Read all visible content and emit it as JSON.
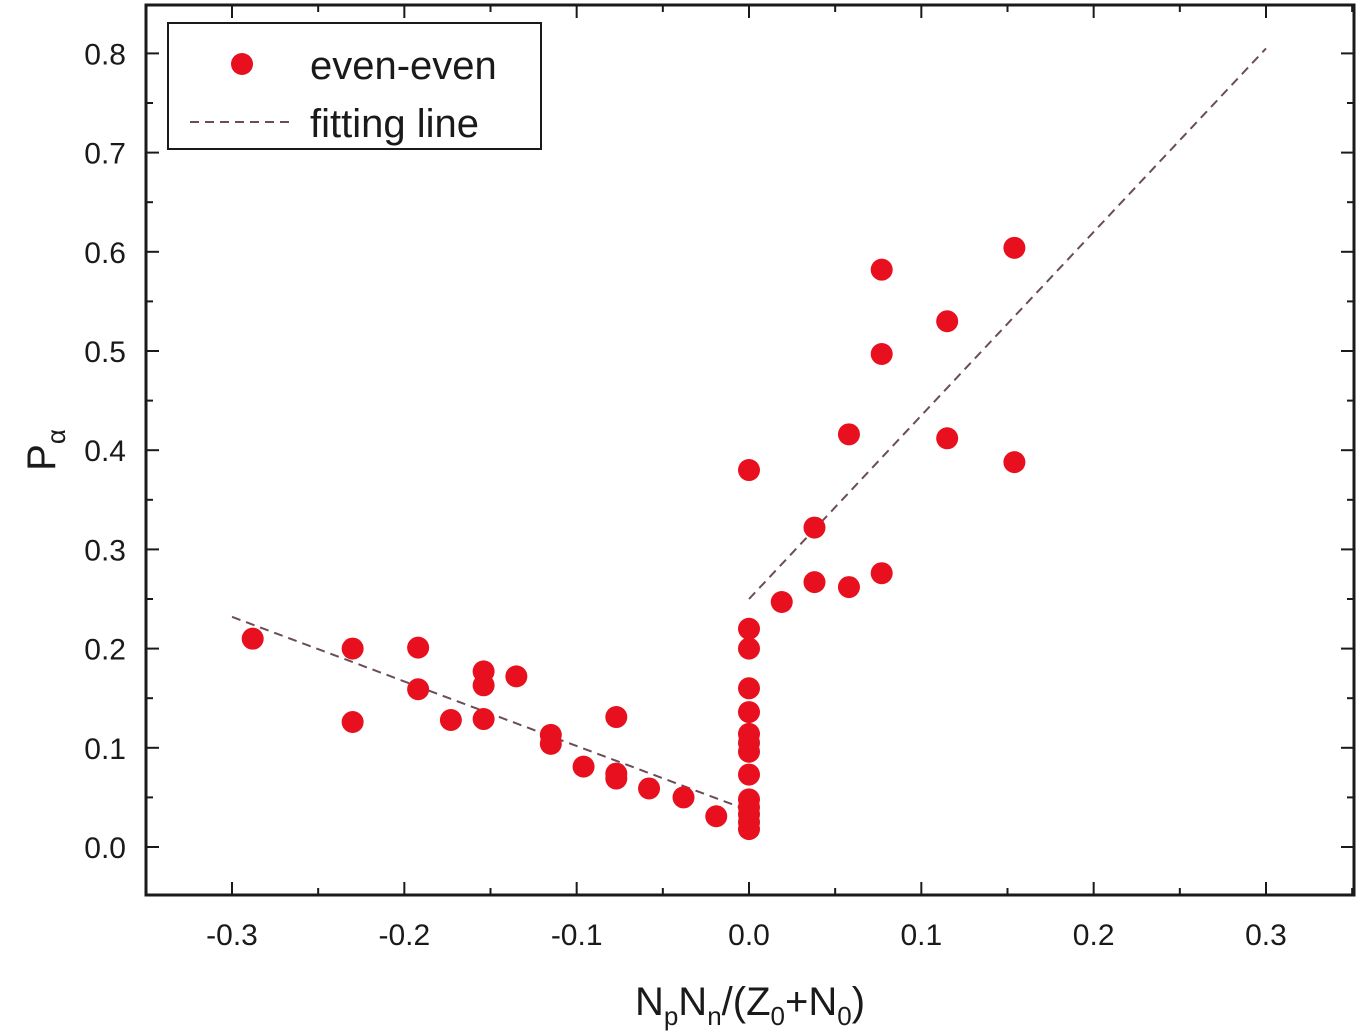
{
  "chart_data": {
    "type": "scatter",
    "xlabel": {
      "parts": [
        {
          "t": "N"
        },
        {
          "t": "p",
          "sub": true
        },
        {
          "t": "N"
        },
        {
          "t": "n",
          "sub": true
        },
        {
          "t": "/(Z"
        },
        {
          "t": "0",
          "sub": true
        },
        {
          "t": "+N"
        },
        {
          "t": "0",
          "sub": true
        },
        {
          "t": ")"
        }
      ]
    },
    "ylabel": {
      "main": "P",
      "sub": "α"
    },
    "xlim": [
      -0.35,
      0.35
    ],
    "ylim": [
      -0.05,
      0.8
    ],
    "x_ticks": [
      -0.3,
      -0.2,
      -0.1,
      0.0,
      0.1,
      0.2,
      0.3
    ],
    "x_tick_labels": [
      "-0.3",
      "-0.2",
      "-0.1",
      "0.0",
      "0.1",
      "0.2",
      "0.3"
    ],
    "y_ticks": [
      0.0,
      0.1,
      0.2,
      0.3,
      0.4,
      0.5,
      0.6,
      0.7,
      0.8
    ],
    "y_tick_labels": [
      "0.0",
      "0.1",
      "0.2",
      "0.3",
      "0.4",
      "0.5",
      "0.6",
      "0.7",
      "0.8"
    ],
    "legend": {
      "position": "top-left",
      "items": [
        {
          "label": "even-even",
          "kind": "marker"
        },
        {
          "label": "fitting line",
          "kind": "dashed-line"
        }
      ]
    },
    "colors": {
      "marker": "#e8101e",
      "line": "#6b4d58",
      "axis": "#1a1a1a"
    },
    "series": [
      {
        "name": "even-even",
        "points": [
          [
            -0.288,
            0.21
          ],
          [
            -0.23,
            0.2
          ],
          [
            -0.23,
            0.126
          ],
          [
            -0.192,
            0.201
          ],
          [
            -0.192,
            0.159
          ],
          [
            -0.173,
            0.128
          ],
          [
            -0.154,
            0.177
          ],
          [
            -0.154,
            0.163
          ],
          [
            -0.154,
            0.129
          ],
          [
            -0.135,
            0.172
          ],
          [
            -0.115,
            0.113
          ],
          [
            -0.115,
            0.104
          ],
          [
            -0.096,
            0.081
          ],
          [
            -0.077,
            0.131
          ],
          [
            -0.077,
            0.074
          ],
          [
            -0.077,
            0.069
          ],
          [
            -0.058,
            0.059
          ],
          [
            -0.038,
            0.05
          ],
          [
            -0.019,
            0.031
          ],
          [
            0.0,
            0.38
          ],
          [
            0.0,
            0.22
          ],
          [
            0.0,
            0.2
          ],
          [
            0.0,
            0.16
          ],
          [
            0.0,
            0.136
          ],
          [
            0.0,
            0.114
          ],
          [
            0.0,
            0.105
          ],
          [
            0.0,
            0.096
          ],
          [
            0.0,
            0.073
          ],
          [
            0.0,
            0.048
          ],
          [
            0.0,
            0.04
          ],
          [
            0.0,
            0.033
          ],
          [
            0.0,
            0.025
          ],
          [
            0.0,
            0.018
          ],
          [
            0.019,
            0.247
          ],
          [
            0.038,
            0.322
          ],
          [
            0.038,
            0.267
          ],
          [
            0.058,
            0.416
          ],
          [
            0.058,
            0.262
          ],
          [
            0.077,
            0.582
          ],
          [
            0.077,
            0.497
          ],
          [
            0.077,
            0.276
          ],
          [
            0.115,
            0.53
          ],
          [
            0.115,
            0.412
          ],
          [
            0.154,
            0.604
          ],
          [
            0.154,
            0.388
          ]
        ]
      },
      {
        "name": "fitting line",
        "segments": [
          [
            [
              -0.3,
              0.232
            ],
            [
              -0.005,
              0.04
            ]
          ],
          [
            [
              0.0,
              0.25
            ],
            [
              0.3,
              0.805
            ]
          ]
        ]
      }
    ]
  }
}
